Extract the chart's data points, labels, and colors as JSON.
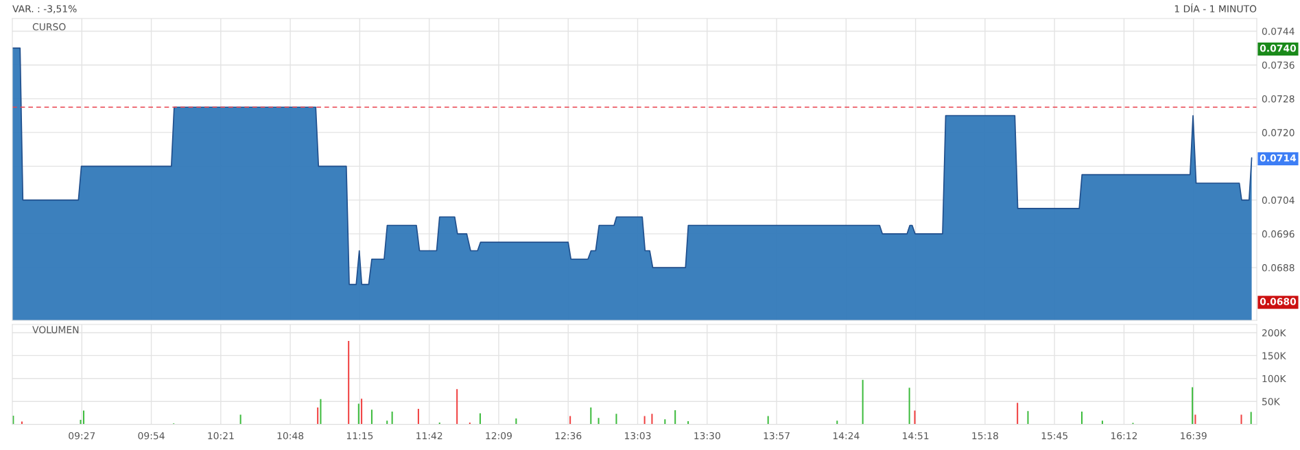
{
  "chart_data": [
    {
      "type": "area",
      "title": "CURSO",
      "subtitle": "1 DÍA - 1 MINUTO",
      "xlim": [
        9.0,
        17.06
      ],
      "xticks": [
        {
          "value": 9.45,
          "label": null
        },
        {
          "value": 9.9,
          "label": null
        },
        {
          "value": 10.35,
          "label": null
        },
        {
          "value": 10.8,
          "label": null
        },
        {
          "value": 11.25,
          "label": null
        },
        {
          "value": 11.7,
          "label": null
        },
        {
          "value": 12.15,
          "label": null
        },
        {
          "value": 12.6,
          "label": null
        },
        {
          "value": 13.05,
          "label": null
        },
        {
          "value": 13.5,
          "label": null
        },
        {
          "value": 13.95,
          "label": null
        },
        {
          "value": 14.4,
          "label": null
        },
        {
          "value": 14.85,
          "label": null
        },
        {
          "value": 15.3,
          "label": null
        },
        {
          "value": 15.75,
          "label": null
        },
        {
          "value": 16.2,
          "label": null
        },
        {
          "value": 16.65,
          "label": null
        }
      ],
      "ylim": [
        0.06755,
        0.0747
      ],
      "yticks": [
        {
          "value": 0.0688,
          "label": "0.0688"
        },
        {
          "value": 0.0696,
          "label": "0.0696"
        },
        {
          "value": 0.0704,
          "label": "0.0704"
        },
        {
          "value": 0.0712,
          "label": null
        },
        {
          "value": 0.072,
          "label": "0.0720"
        },
        {
          "value": 0.0728,
          "label": "0.0728"
        },
        {
          "value": 0.0736,
          "label": "0.0736"
        },
        {
          "value": 0.0744,
          "label": "0.0744"
        }
      ],
      "tick_labels": "y",
      "grid": true,
      "ref_lines": [
        {
          "axis": "y",
          "value": 0.0726,
          "color": "#e8434f",
          "line_style": "dashed"
        }
      ],
      "annotations": [
        "VAR. : -3,51%"
      ],
      "y2lim": [
        0.06755,
        0.0747
      ],
      "y2ticks": [
        {
          "value": 0.074,
          "label": "0.0740"
        },
        {
          "value": 0.0714,
          "label": "0.0714"
        },
        {
          "value": 0.068,
          "label": "0.0680"
        }
      ],
      "series": [
        {
          "color": "#3279b9",
          "x": [
            9.0,
            9.05,
            9.068,
            9.428,
            9.447,
            10.03,
            10.048,
            10.965,
            10.983,
            11.163,
            11.182,
            11.227,
            11.247,
            11.263,
            11.308,
            11.328,
            11.408,
            11.428,
            11.617,
            11.637,
            11.748,
            11.767,
            11.865,
            11.883,
            11.943,
            11.968,
            12.013,
            12.032,
            12.6,
            12.618,
            12.728,
            12.748,
            12.778,
            12.8,
            12.897,
            12.913,
            13.08,
            13.098,
            13.128,
            13.148,
            13.36,
            13.378,
            14.617,
            14.635,
            14.795,
            14.813,
            14.828,
            14.847,
            15.025,
            15.045,
            15.493,
            15.512,
            15.91,
            15.928,
            16.628,
            16.647,
            16.667,
            16.947,
            16.962,
            17.01,
            17.027
          ],
          "values": [
            0.074,
            0.074,
            0.0704,
            0.0704,
            0.0712,
            0.0712,
            0.0726,
            0.0726,
            0.0712,
            0.0712,
            0.0684,
            0.0684,
            0.0692,
            0.0684,
            0.0684,
            0.069,
            0.069,
            0.0698,
            0.0698,
            0.0692,
            0.0692,
            0.07,
            0.07,
            0.0696,
            0.0696,
            0.0692,
            0.0692,
            0.0694,
            0.0694,
            0.069,
            0.069,
            0.0692,
            0.0692,
            0.0698,
            0.0698,
            0.07,
            0.07,
            0.0692,
            0.0692,
            0.0688,
            0.0688,
            0.0698,
            0.0698,
            0.0696,
            0.0696,
            0.0698,
            0.0698,
            0.0696,
            0.0696,
            0.0724,
            0.0724,
            0.0702,
            0.0702,
            0.071,
            0.071,
            0.0724,
            0.0708,
            0.0708,
            0.0704,
            0.0704,
            0.0714
          ]
        }
      ]
    },
    {
      "type": "bar",
      "title": "VOLUMEN",
      "xlim": [
        9.0,
        17.06
      ],
      "xticks": [
        {
          "value": 9.45,
          "label": "09:27"
        },
        {
          "value": 9.9,
          "label": "09:54"
        },
        {
          "value": 10.35,
          "label": "10:21"
        },
        {
          "value": 10.8,
          "label": "10:48"
        },
        {
          "value": 11.25,
          "label": "11:15"
        },
        {
          "value": 11.7,
          "label": "11:42"
        },
        {
          "value": 12.15,
          "label": "12:09"
        },
        {
          "value": 12.6,
          "label": "12:36"
        },
        {
          "value": 13.05,
          "label": "13:03"
        },
        {
          "value": 13.5,
          "label": "13:30"
        },
        {
          "value": 13.95,
          "label": "13:57"
        },
        {
          "value": 14.4,
          "label": "14:24"
        },
        {
          "value": 14.85,
          "label": "14:51"
        },
        {
          "value": 15.3,
          "label": "15:18"
        },
        {
          "value": 15.75,
          "label": "15:45"
        },
        {
          "value": 16.2,
          "label": "16:12"
        },
        {
          "value": 16.65,
          "label": "16:39"
        }
      ],
      "ylim": [
        0,
        218000
      ],
      "yticks": [
        {
          "value": 50000,
          "label": "50K"
        },
        {
          "value": 100000,
          "label": "100K"
        },
        {
          "value": 150000,
          "label": "150K"
        },
        {
          "value": 200000,
          "label": "200K"
        }
      ],
      "grid": true,
      "x": [
        9.006,
        9.062,
        9.442,
        9.462,
        10.045,
        10.478,
        10.978,
        10.997,
        11.178,
        11.243,
        11.262,
        11.328,
        11.427,
        11.46,
        11.63,
        11.767,
        11.88,
        11.963,
        12.03,
        12.263,
        12.613,
        12.747,
        12.797,
        12.912,
        13.095,
        13.143,
        13.227,
        13.293,
        13.377,
        13.895,
        14.342,
        14.508,
        14.81,
        14.845,
        15.51,
        15.578,
        15.927,
        16.06,
        16.258,
        16.643,
        16.662,
        16.96,
        17.023
      ],
      "values": [
        19000,
        6000,
        10000,
        30000,
        2000,
        21000,
        37000,
        55000,
        182000,
        45000,
        56000,
        32000,
        8000,
        28000,
        34000,
        4000,
        77000,
        4000,
        24000,
        13000,
        18000,
        37000,
        14000,
        23000,
        18000,
        23000,
        11000,
        31000,
        7000,
        18000,
        8000,
        97000,
        80000,
        30000,
        47000,
        29000,
        28000,
        8000,
        3000,
        81000,
        21000,
        21000,
        27000
      ],
      "colors": [
        "#3dbb3d",
        "#f04040",
        "#3dbb3d",
        "#3dbb3d",
        "#3dbb3d",
        "#3dbb3d",
        "#f04040",
        "#3dbb3d",
        "#f04040",
        "#3dbb3d",
        "#f04040",
        "#3dbb3d",
        "#3dbb3d",
        "#3dbb3d",
        "#f04040",
        "#3dbb3d",
        "#f04040",
        "#f04040",
        "#3dbb3d",
        "#3dbb3d",
        "#f04040",
        "#3dbb3d",
        "#3dbb3d",
        "#3dbb3d",
        "#f04040",
        "#f04040",
        "#3dbb3d",
        "#3dbb3d",
        "#3dbb3d",
        "#3dbb3d",
        "#3dbb3d",
        "#3dbb3d",
        "#3dbb3d",
        "#f04040",
        "#f04040",
        "#3dbb3d",
        "#3dbb3d",
        "#3dbb3d",
        "#3dbb3d",
        "#3dbb3d",
        "#f04040",
        "#f04040",
        "#3dbb3d"
      ]
    }
  ]
}
